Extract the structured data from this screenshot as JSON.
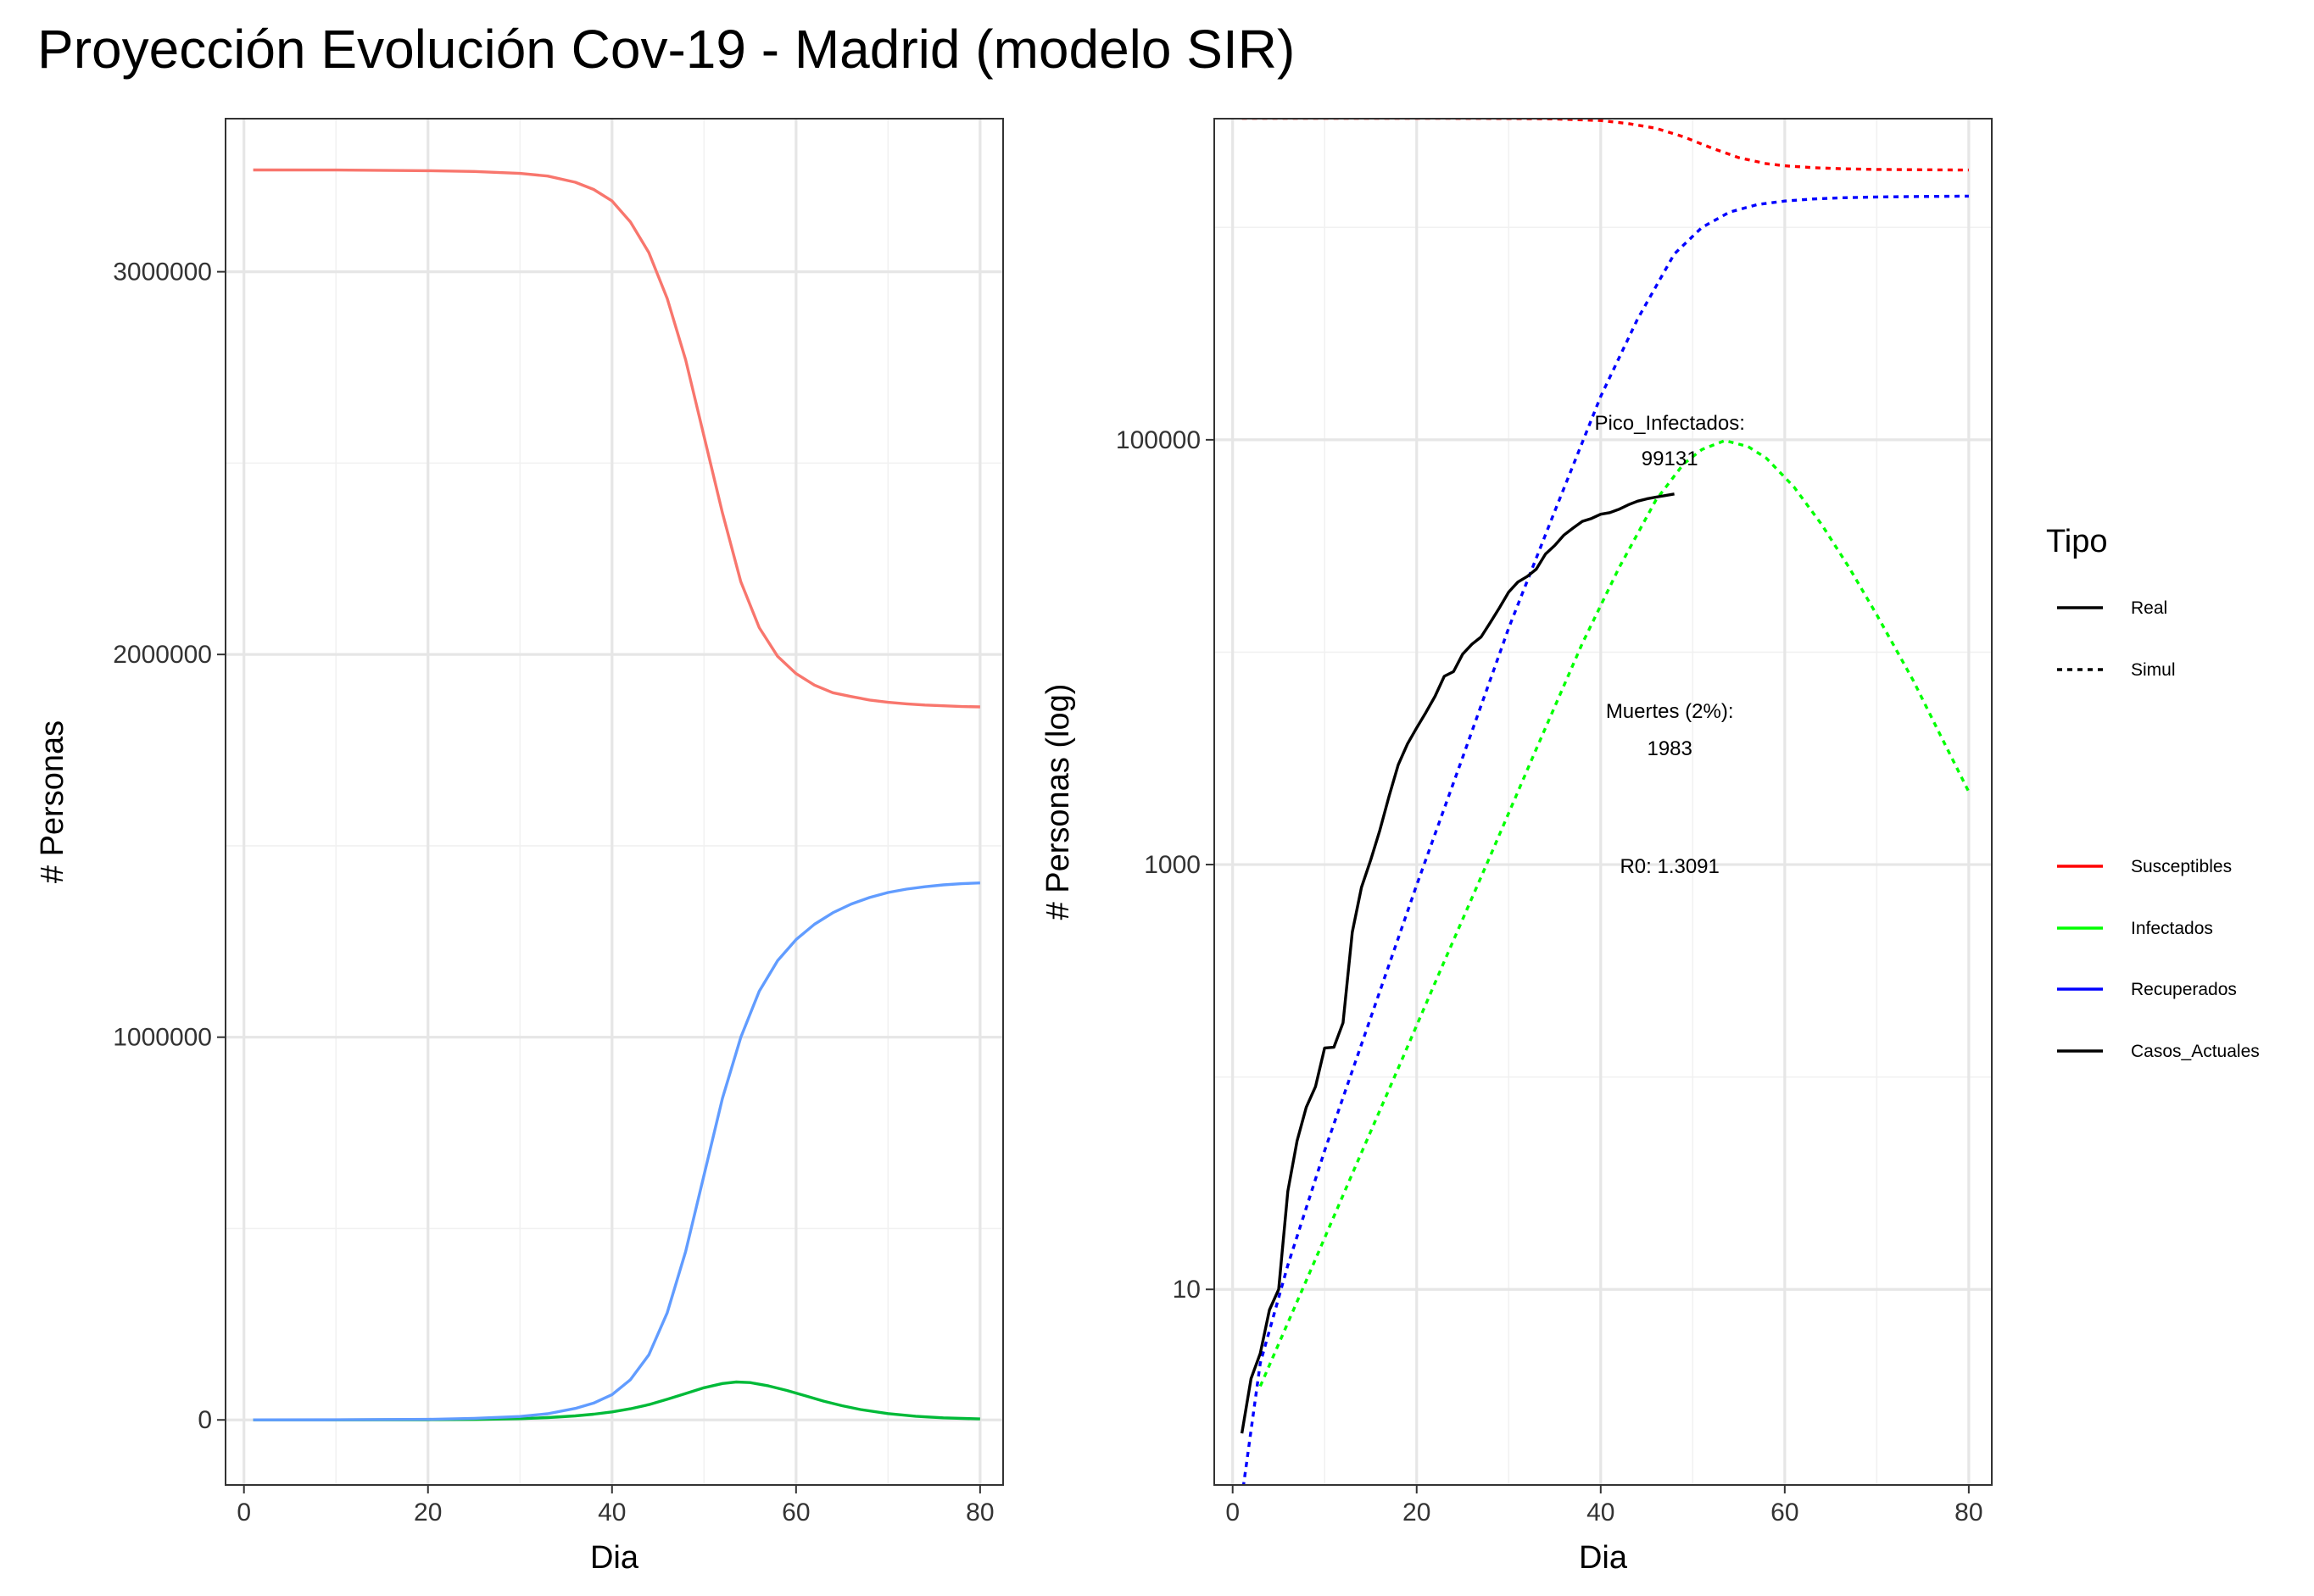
{
  "title": "Proyección Evolución Cov-19 - Madrid (modelo SIR)",
  "chart_data": [
    {
      "type": "line",
      "xlabel": "Dia",
      "ylabel": "# Personas",
      "xlim": [
        -2,
        82.5
      ],
      "ylim": [
        -170000,
        3400000
      ],
      "x_ticks": [
        0,
        20,
        40,
        60,
        80
      ],
      "y_ticks": [
        0,
        1000000,
        2000000,
        3000000
      ],
      "y_tick_labels": [
        "0",
        "1000000",
        "2000000",
        "3000000"
      ],
      "grid": true,
      "series": [
        {
          "color": "#F8766D",
          "x": [
            1,
            10,
            20,
            25,
            30,
            33,
            36,
            38,
            40,
            42,
            44,
            46,
            48,
            50,
            52,
            54,
            56,
            58,
            60,
            62,
            64,
            66,
            68,
            70,
            72,
            74,
            76,
            78,
            80
          ],
          "values": [
            3266000,
            3265700,
            3264000,
            3262000,
            3257000,
            3250000,
            3234000,
            3215000,
            3185000,
            3130000,
            3050000,
            2930000,
            2770000,
            2570000,
            2370000,
            2190000,
            2070000,
            1995000,
            1950000,
            1920000,
            1900000,
            1890000,
            1881000,
            1875000,
            1871000,
            1868000,
            1866000,
            1864000,
            1863000
          ]
        },
        {
          "color": "#00BA38",
          "x": [
            1,
            10,
            20,
            25,
            30,
            33,
            36,
            38,
            40,
            42,
            44,
            46,
            48,
            50,
            52,
            53.5,
            55,
            57,
            59,
            61,
            63,
            65,
            67,
            70,
            73,
            76,
            80
          ],
          "values": [
            5,
            80,
            500,
            1200,
            3200,
            6000,
            10500,
            15000,
            21000,
            29000,
            40000,
            54000,
            69000,
            84000,
            95000,
            99131,
            97500,
            89000,
            77000,
            63000,
            49000,
            37000,
            27000,
            16500,
            9500,
            5500,
            2500
          ]
        },
        {
          "color": "#619CFF",
          "x": [
            1,
            10,
            20,
            25,
            30,
            33,
            36,
            38,
            40,
            42,
            44,
            46,
            48,
            50,
            52,
            54,
            56,
            58,
            60,
            62,
            64,
            66,
            68,
            70,
            72,
            74,
            76,
            78,
            80
          ],
          "values": [
            0,
            300,
            1500,
            4000,
            9000,
            16000,
            30000,
            44000,
            66000,
            105000,
            170000,
            280000,
            440000,
            640000,
            840000,
            1000000,
            1120000,
            1200000,
            1255000,
            1295000,
            1325000,
            1348000,
            1365000,
            1378000,
            1387000,
            1393000,
            1398000,
            1401000,
            1403000
          ]
        }
      ]
    },
    {
      "type": "line",
      "scale_y": "log10",
      "xlabel": "Dia",
      "ylabel": "# Personas (log)",
      "xlim": [
        -2,
        82.5
      ],
      "ylim": [
        1.2,
        3250000
      ],
      "x_ticks": [
        0,
        20,
        40,
        60,
        80
      ],
      "y_ticks": [
        10,
        1000,
        100000
      ],
      "y_tick_labels": [
        "10",
        "1000",
        "100000"
      ],
      "y_minor_ticks": [
        100,
        10000,
        1000000
      ],
      "grid": true,
      "series": [
        {
          "name": "Susceptibles",
          "linetype": "Simul",
          "color": "#FF0000",
          "x": [
            1,
            10,
            20,
            30,
            35,
            40,
            43,
            46,
            49,
            52,
            55,
            58,
            60,
            63,
            66,
            70,
            75,
            80
          ],
          "values": [
            3266000,
            3265700,
            3264000,
            3257000,
            3240000,
            3185000,
            3080000,
            2930000,
            2670000,
            2370000,
            2130000,
            1995000,
            1950000,
            1910000,
            1890000,
            1875000,
            1867000,
            1863000
          ]
        },
        {
          "name": "Infectados",
          "linetype": "Simul",
          "color": "#00FF00",
          "x": [
            3,
            8,
            13,
            18,
            23,
            28,
            33,
            38,
            42,
            46,
            49,
            51,
            53.5,
            56,
            58,
            61,
            64,
            67,
            70,
            74,
            77,
            80
          ],
          "values": [
            3.5,
            11,
            35,
            110,
            350,
            1100,
            3500,
            11000,
            25000,
            52000,
            77000,
            90000,
            99131,
            93000,
            82000,
            60000,
            40000,
            25000,
            15000,
            7300,
            4000,
            2200
          ]
        },
        {
          "name": "Recuperados",
          "linetype": "Simul",
          "color": "#0000FF",
          "x": [
            1,
            3,
            6,
            10,
            15,
            20,
            25,
            30,
            35,
            40,
            44,
            48,
            51,
            54,
            57,
            60,
            63,
            66,
            70,
            75,
            80
          ],
          "values": [
            1.05,
            4.5,
            13,
            45,
            190,
            800,
            3200,
            13000,
            46000,
            160000,
            370000,
            750000,
            1000000,
            1180000,
            1280000,
            1330000,
            1360000,
            1378000,
            1390000,
            1398000,
            1403000
          ]
        },
        {
          "name": "Casos_Actuales",
          "linetype": "Real",
          "color": "#000000",
          "x": [
            1,
            2,
            3,
            4,
            5,
            6,
            7,
            8,
            9,
            10,
            11,
            12,
            13,
            14,
            15,
            16,
            17,
            18,
            19,
            20,
            21,
            22,
            23,
            24,
            25,
            26,
            27,
            28,
            29,
            30,
            31,
            32,
            33,
            34,
            35,
            36,
            37,
            38,
            39,
            40,
            41,
            42,
            43,
            44,
            45,
            46,
            47,
            48
          ],
          "values": [
            2.1,
            3.8,
            5,
            8,
            10,
            29,
            50,
            72,
            90,
            137,
            138,
            180,
            480,
            780,
            1050,
            1450,
            2100,
            2950,
            3700,
            4400,
            5200,
            6200,
            7700,
            8100,
            9800,
            10900,
            11800,
            13800,
            16200,
            19200,
            21400,
            22700,
            24600,
            29000,
            31800,
            35600,
            38400,
            41300,
            42600,
            44600,
            45400,
            47100,
            49400,
            51400,
            52700,
            53700,
            54600,
            55600
          ]
        }
      ],
      "annotations": [
        {
          "lines": [
            "Pico_Infectados:",
            "99131"
          ]
        },
        {
          "lines": [
            "Muertes (2%):",
            "1983"
          ]
        },
        {
          "lines": [
            "R0: 1.3091"
          ]
        }
      ]
    }
  ],
  "legend": {
    "title": "Tipo",
    "linetype_items": [
      {
        "label": "Real",
        "dash": "solid"
      },
      {
        "label": "Simul",
        "dash": "dotted"
      }
    ],
    "color_items": [
      {
        "label": "Susceptibles",
        "color": "#FF0000"
      },
      {
        "label": "Infectados",
        "color": "#00FF00"
      },
      {
        "label": "Recuperados",
        "color": "#0000FF"
      },
      {
        "label": "Casos_Actuales",
        "color": "#000000"
      }
    ]
  }
}
